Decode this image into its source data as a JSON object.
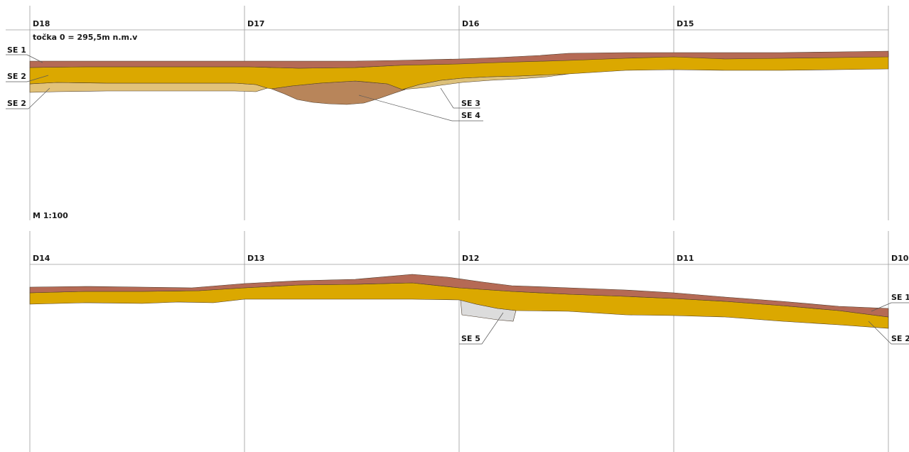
{
  "legend_colors": {
    "SE 1": "#b56a55",
    "SE 2": "#dba800",
    "SE 2b": "#e2c27a",
    "SE 3": "#dcc07a",
    "SE 4": "#b8855a",
    "SE 5": "#dcdcdc"
  },
  "top_section": {
    "datum": "točka 0 = 295,5m n.m.v",
    "scale": "M 1:100",
    "stations": [
      "D18",
      "D17",
      "D16",
      "D15"
    ],
    "layers": {
      "se1_left": "SE 1",
      "se2_left": "SE 2",
      "se2b_left": "SE 2",
      "se3": "SE 3",
      "se4": "SE 4"
    }
  },
  "bottom_section": {
    "stations": [
      "D14",
      "D13",
      "D12",
      "D11",
      "D10"
    ],
    "layers": {
      "se5": "SE 5",
      "se1_right": "SE 1",
      "se2_right": "SE 2"
    }
  }
}
